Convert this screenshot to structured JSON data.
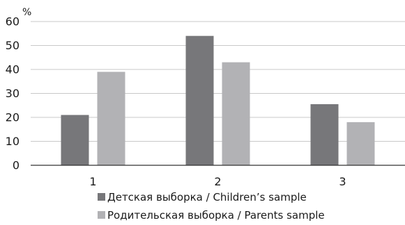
{
  "chart_data": {
    "type": "bar",
    "ylabel": "%",
    "ylim": [
      0,
      60
    ],
    "yticks": [
      0,
      10,
      20,
      30,
      40,
      50,
      60
    ],
    "grid": true,
    "categories": [
      "1",
      "2",
      "3"
    ],
    "series": [
      {
        "name": "Детская выборка / Children’s sample",
        "color": "#77777a",
        "values": [
          21,
          54,
          25.5
        ]
      },
      {
        "name": "Родительская выборка / Parents sample",
        "color": "#b2b2b5",
        "values": [
          39,
          43,
          18
        ]
      }
    ],
    "legend_position": "bottom"
  }
}
